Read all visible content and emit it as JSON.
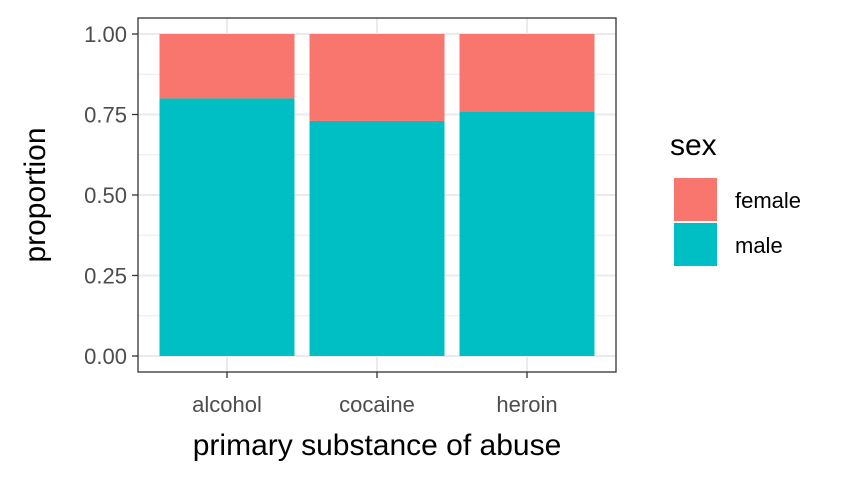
{
  "chart_data": {
    "type": "bar",
    "stacked": true,
    "categories": [
      "alcohol",
      "cocaine",
      "heroin"
    ],
    "series": [
      {
        "name": "female",
        "values": [
          0.2,
          0.27,
          0.24
        ],
        "color": "#F8766D"
      },
      {
        "name": "male",
        "values": [
          0.8,
          0.73,
          0.76
        ],
        "color": "#00BFC4"
      }
    ],
    "xlabel": "primary substance of abuse",
    "ylabel": "proportion",
    "ylim": [
      0,
      1
    ],
    "yticks": [
      "0.00",
      "0.25",
      "0.50",
      "0.75",
      "1.00"
    ],
    "ytick_values": [
      0,
      0.25,
      0.5,
      0.75,
      1.0
    ],
    "grid": true,
    "legend": {
      "title": "sex",
      "placement": "right"
    }
  }
}
